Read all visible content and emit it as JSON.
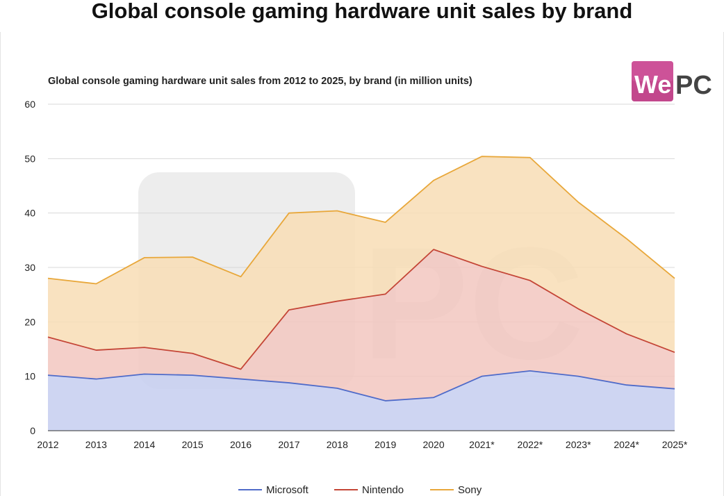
{
  "header": {
    "title": "Global console gaming hardware unit sales by brand"
  },
  "logo": {
    "part1": "We",
    "part2": "PC"
  },
  "colors": {
    "microsoft": "#4f6bc9",
    "nintendo": "#c44536",
    "sony": "#e8a73a",
    "microsoft_fill": "#c6cef0",
    "nintendo_fill": "#f2c7c0",
    "sony_fill": "#f8ddb5"
  },
  "chart_data": {
    "type": "area",
    "title": "Global console gaming hardware unit sales from 2012 to 2025, by brand (in million units)",
    "categories": [
      "2012",
      "2013",
      "2014",
      "2015",
      "2016",
      "2017",
      "2018",
      "2019",
      "2020",
      "2021*",
      "2022*",
      "2023*",
      "2024*",
      "2025*"
    ],
    "stacked": true,
    "series": [
      {
        "name": "Microsoft",
        "values": [
          10.2,
          9.5,
          10.4,
          10.2,
          9.5,
          8.8,
          7.8,
          5.5,
          6.1,
          10.0,
          11.0,
          10.0,
          8.4,
          7.7
        ]
      },
      {
        "name": "Nintendo",
        "values": [
          7.0,
          5.3,
          4.9,
          4.0,
          1.8,
          13.4,
          16.0,
          19.6,
          27.2,
          20.2,
          16.6,
          12.4,
          9.4,
          6.7
        ]
      },
      {
        "name": "Sony",
        "values": [
          10.8,
          12.2,
          16.5,
          17.7,
          17.0,
          17.8,
          16.6,
          13.2,
          12.7,
          20.2,
          22.6,
          19.6,
          17.5,
          13.6
        ]
      }
    ],
    "ylim": [
      0,
      60
    ],
    "yticks": [
      0,
      10,
      20,
      30,
      40,
      50,
      60
    ],
    "grid": true,
    "legend": "bottom"
  }
}
